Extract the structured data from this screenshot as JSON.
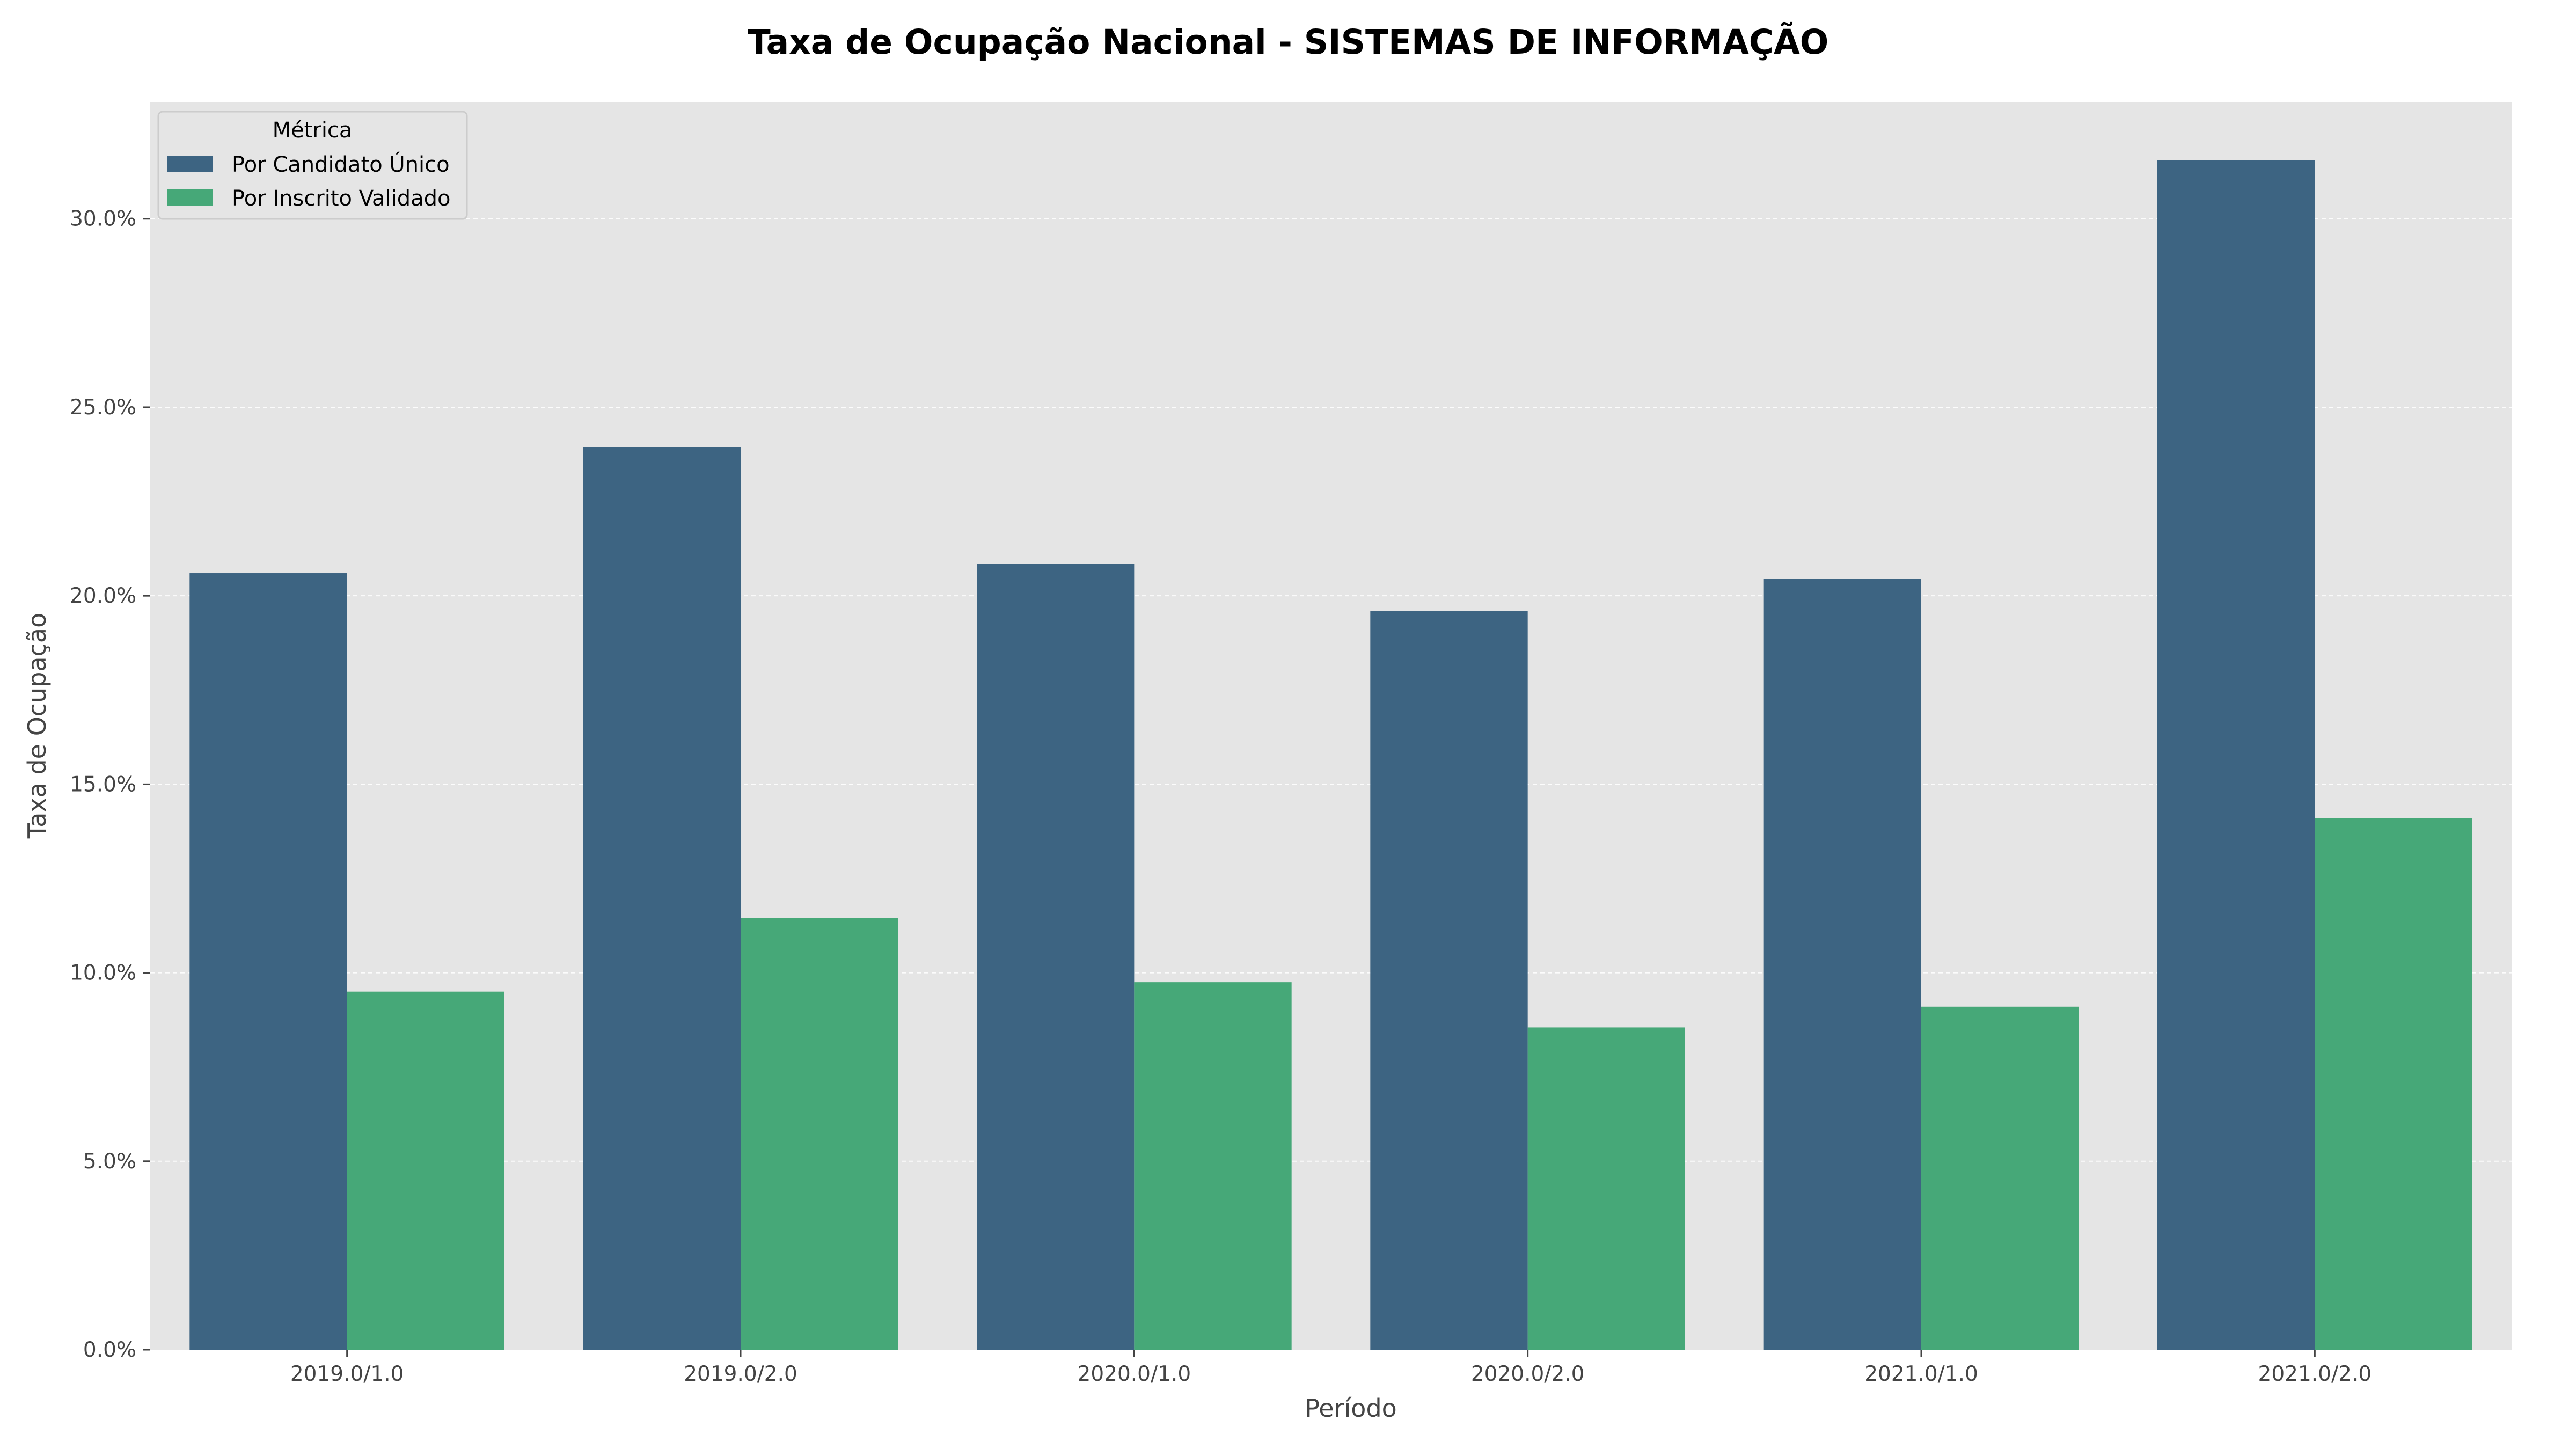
{
  "chart_data": {
    "type": "bar",
    "title": "Taxa de Ocupação Nacional - SISTEMAS DE INFORMAÇÃO",
    "xlabel": "Período",
    "ylabel": "Taxa de Ocupação",
    "categories": [
      "2019.0/1.0",
      "2019.0/2.0",
      "2020.0/1.0",
      "2020.0/2.0",
      "2021.0/1.0",
      "2021.0/2.0"
    ],
    "series": [
      {
        "name": "Por Candidato Único",
        "color": "#3d6482",
        "values": [
          20.6,
          23.95,
          20.85,
          19.6,
          20.45,
          31.55
        ]
      },
      {
        "name": "Por Inscrito Validado",
        "color": "#46a878",
        "values": [
          9.5,
          11.45,
          9.75,
          8.55,
          9.1,
          14.1
        ]
      }
    ],
    "ylim": [
      0,
      33.1
    ],
    "yticks": [
      0,
      5,
      10,
      15,
      20,
      25,
      30
    ],
    "ytick_format": "percent_1dp",
    "grid": true,
    "legend": {
      "title": "Métrica",
      "position": "top-left"
    },
    "colors": {
      "plot_background": "#e5e5e5",
      "page_background": "#ffffff"
    }
  }
}
